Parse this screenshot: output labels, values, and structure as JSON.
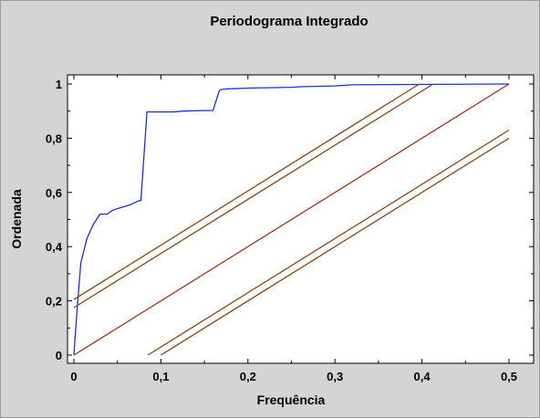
{
  "chart_data": {
    "type": "line",
    "title": "Periodograma Integrado",
    "xlabel": "Frequência",
    "ylabel": "Ordenada",
    "xlim": [
      0,
      0.5
    ],
    "ylim": [
      0,
      1
    ],
    "x_ticks": [
      "0",
      "0,1",
      "0,2",
      "0,3",
      "0,4",
      "0,5"
    ],
    "y_ticks": [
      "0",
      "0,2",
      "0,4",
      "0,6",
      "0,8",
      "1"
    ],
    "x_tick_values": [
      0,
      0.1,
      0.2,
      0.3,
      0.4,
      0.5
    ],
    "y_tick_values": [
      0,
      0.2,
      0.4,
      0.6,
      0.8,
      1
    ],
    "grid": false,
    "series": [
      {
        "color": "#1f2fd6",
        "points": [
          [
            0.0,
            0.0
          ],
          [
            0.003,
            0.14
          ],
          [
            0.008,
            0.34
          ],
          [
            0.015,
            0.43
          ],
          [
            0.022,
            0.48
          ],
          [
            0.03,
            0.52
          ],
          [
            0.038,
            0.52
          ],
          [
            0.045,
            0.535
          ],
          [
            0.055,
            0.545
          ],
          [
            0.065,
            0.555
          ],
          [
            0.075,
            0.57
          ],
          [
            0.077,
            0.57
          ],
          [
            0.084,
            0.897
          ],
          [
            0.09,
            0.897
          ],
          [
            0.1,
            0.897
          ],
          [
            0.115,
            0.897
          ],
          [
            0.125,
            0.9
          ],
          [
            0.15,
            0.902
          ],
          [
            0.16,
            0.902
          ],
          [
            0.167,
            0.975
          ],
          [
            0.17,
            0.98
          ],
          [
            0.178,
            0.982
          ],
          [
            0.2,
            0.985
          ],
          [
            0.25,
            0.988
          ],
          [
            0.26,
            0.99
          ],
          [
            0.3,
            0.993
          ],
          [
            0.32,
            0.997
          ],
          [
            0.5,
            1.0
          ]
        ]
      },
      {
        "color": "#a0321e",
        "points": [
          [
            0.0,
            0.0
          ],
          [
            0.5,
            1.0
          ]
        ]
      },
      {
        "color": "#8b4513",
        "points": [
          [
            0.0,
            0.205
          ],
          [
            0.397,
            1.0
          ]
        ]
      },
      {
        "color": "#8b4513",
        "points": [
          [
            0.0,
            0.175
          ],
          [
            0.413,
            1.0
          ]
        ]
      },
      {
        "color": "#8b4513",
        "points": [
          [
            0.085,
            0.0
          ],
          [
            0.5,
            0.83
          ]
        ]
      },
      {
        "color": "#8b4513",
        "points": [
          [
            0.1,
            0.0
          ],
          [
            0.5,
            0.8
          ]
        ]
      }
    ]
  }
}
